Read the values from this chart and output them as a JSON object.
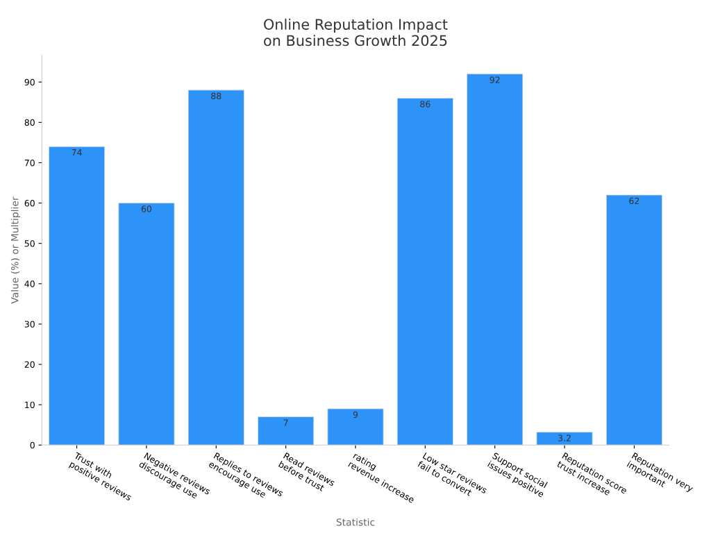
{
  "chart_data": {
    "type": "bar",
    "title": "Online Reputation Impact\non Business Growth 2025",
    "xlabel": "Statistic",
    "ylabel": "Value (%) or Multiplier",
    "categories": [
      "Trust with\npositive reviews",
      "Negative reviews\ndiscourage use",
      "Replies to reviews\nencourage use",
      "Read reviews\nbefore trust",
      "rating\nrevenue increase",
      "Low star reviews\nfail to convert",
      "Support social\nissues positive",
      "Reputation score\ntrust increase",
      "Reputation very\nimportant"
    ],
    "values": [
      74,
      60,
      88,
      7,
      9,
      86,
      92,
      3.2,
      62
    ],
    "color": "#2e93f8",
    "ylim": [
      0,
      96.6
    ],
    "yticks": [
      0,
      10,
      20,
      30,
      40,
      50,
      60,
      70,
      80,
      90
    ],
    "grid": false,
    "data_labels": true
  }
}
